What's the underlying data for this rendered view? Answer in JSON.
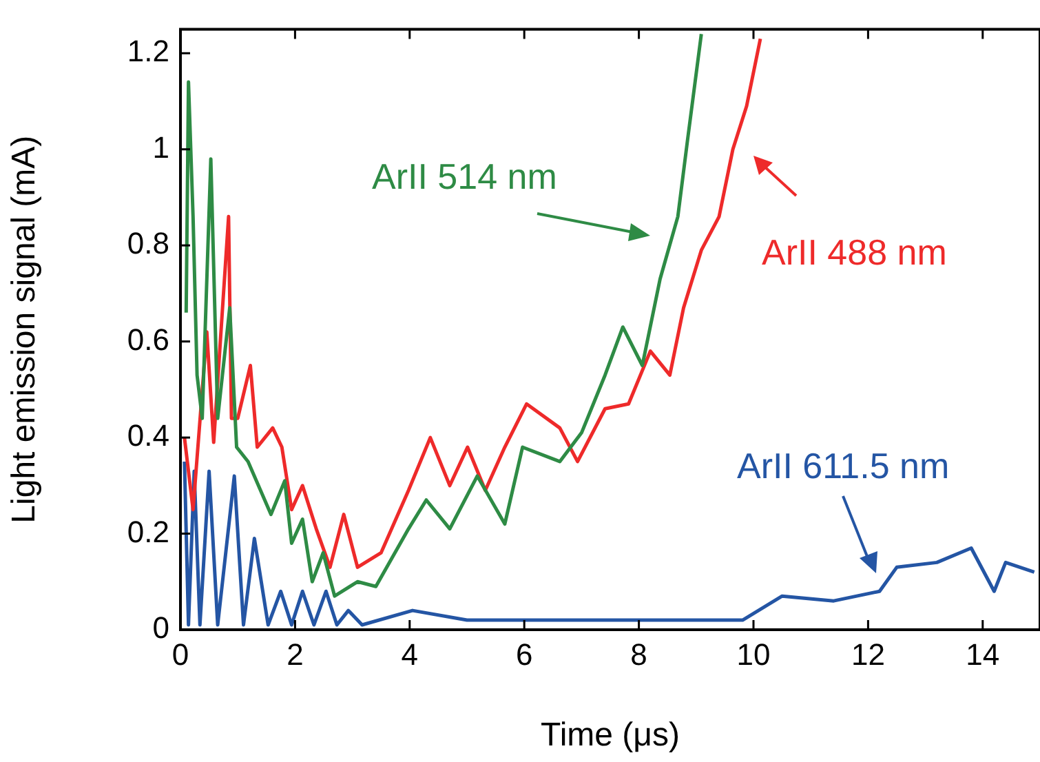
{
  "chart_data": {
    "type": "line",
    "xlabel": "Time (μs)",
    "ylabel": "Light emission signal (mA)",
    "xlim": [
      0,
      15
    ],
    "xticks": [
      0,
      2,
      4,
      6,
      8,
      10,
      12,
      14
    ],
    "ylim": [
      0,
      1.25
    ],
    "yticks": [
      0,
      0.2,
      0.4,
      0.6,
      0.8,
      1,
      1.2
    ],
    "grid": false,
    "marker": "none",
    "line_style": "solid",
    "series": [
      {
        "name": "ArII 514 nm",
        "color": "#2e8b45",
        "x": [
          0.1,
          0.14,
          0.22,
          0.29,
          0.38,
          0.53,
          0.65,
          0.86,
          0.98,
          1.18,
          1.58,
          1.82,
          1.94,
          2.13,
          2.3,
          2.49,
          2.69,
          3.09,
          3.41,
          3.98,
          4.29,
          4.7,
          5.18,
          5.66,
          5.97,
          6.62,
          7.0,
          7.41,
          7.72,
          8.06,
          8.37,
          8.68,
          8.85,
          9.09
        ],
        "values": [
          0.66,
          1.14,
          0.86,
          0.53,
          0.44,
          0.98,
          0.44,
          0.67,
          0.38,
          0.35,
          0.24,
          0.31,
          0.18,
          0.23,
          0.1,
          0.16,
          0.07,
          0.1,
          0.09,
          0.21,
          0.27,
          0.21,
          0.32,
          0.22,
          0.38,
          0.35,
          0.41,
          0.53,
          0.63,
          0.55,
          0.73,
          0.86,
          1.02,
          1.24
        ]
      },
      {
        "name": "ArII 488 nm",
        "color": "#ee2a2a",
        "x": [
          0.07,
          0.22,
          0.46,
          0.58,
          0.84,
          0.89,
          1.0,
          1.22,
          1.34,
          1.61,
          1.77,
          1.94,
          2.13,
          2.37,
          2.61,
          2.85,
          3.09,
          3.5,
          3.98,
          4.36,
          4.7,
          5.01,
          5.32,
          5.66,
          6.04,
          6.62,
          6.93,
          7.41,
          7.82,
          8.2,
          8.54,
          8.78,
          9.09,
          9.4,
          9.64,
          9.88,
          10.12
        ],
        "values": [
          0.4,
          0.25,
          0.62,
          0.39,
          0.86,
          0.44,
          0.44,
          0.55,
          0.38,
          0.42,
          0.38,
          0.25,
          0.3,
          0.21,
          0.13,
          0.24,
          0.13,
          0.16,
          0.29,
          0.4,
          0.3,
          0.38,
          0.29,
          0.38,
          0.47,
          0.42,
          0.35,
          0.46,
          0.47,
          0.58,
          0.53,
          0.67,
          0.79,
          0.86,
          1.0,
          1.09,
          1.23
        ]
      },
      {
        "name": "ArII 611.5 nm",
        "color": "#2455a4",
        "x": [
          0.07,
          0.14,
          0.24,
          0.34,
          0.5,
          0.65,
          0.94,
          1.1,
          1.29,
          1.53,
          1.75,
          1.94,
          2.13,
          2.33,
          2.54,
          2.73,
          2.93,
          3.17,
          4.05,
          5,
          6,
          7,
          8,
          9,
          9.81,
          10.5,
          11.4,
          12.2,
          12.5,
          13.2,
          13.8,
          14.2,
          14.4,
          14.9
        ],
        "values": [
          0.35,
          0.01,
          0.33,
          0.01,
          0.33,
          0.01,
          0.32,
          0.01,
          0.19,
          0.01,
          0.08,
          0.01,
          0.08,
          0.01,
          0.08,
          0.01,
          0.04,
          0.01,
          0.04,
          0.02,
          0.02,
          0.02,
          0.02,
          0.02,
          0.02,
          0.07,
          0.06,
          0.08,
          0.13,
          0.14,
          0.17,
          0.08,
          0.14,
          0.12
        ]
      }
    ]
  }
}
